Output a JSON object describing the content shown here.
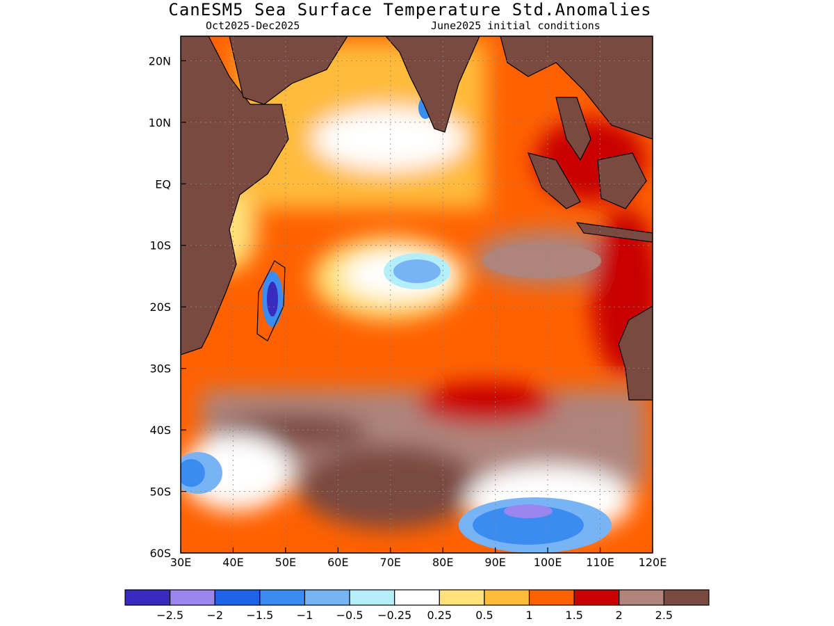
{
  "chart_data": {
    "type": "heatmap",
    "title": "CanESM5 Sea Surface Temperature Std.Anomalies",
    "subtitle_left": "Oct2025-Dec2025",
    "subtitle_right": "June2025 initial conditions",
    "x_ticks": [
      "30E",
      "40E",
      "50E",
      "60E",
      "70E",
      "80E",
      "90E",
      "100E",
      "110E",
      "120E"
    ],
    "x_values": [
      30,
      40,
      50,
      60,
      70,
      80,
      90,
      100,
      110,
      120
    ],
    "y_ticks": [
      "20N",
      "10N",
      "EQ",
      "10S",
      "20S",
      "30S",
      "40S",
      "50S",
      "60S"
    ],
    "y_values": [
      20,
      10,
      0,
      -10,
      -20,
      -30,
      -40,
      -50,
      -60
    ],
    "xlim": [
      30,
      120
    ],
    "ylim": [
      -60,
      24
    ],
    "grid": true,
    "colorbar": {
      "labels": [
        "-2.5",
        "-2",
        "-1.5",
        "-1",
        "-0.5",
        "-0.25",
        "0.25",
        "0.5",
        "1",
        "1.5",
        "2",
        "2.5"
      ],
      "colors": [
        "#3a2bbf",
        "#9b86f0",
        "#1f63e6",
        "#3a8cf0",
        "#78b4f5",
        "#b4eef8",
        "#ffffff",
        "#ffe27a",
        "#ffbb3a",
        "#ff6100",
        "#c80000",
        "#ae847b",
        "#7a4a40"
      ]
    },
    "land_color": "#7a4a40",
    "anomaly_features": [
      {
        "lon": 65,
        "lat": 8,
        "value": 0.1
      },
      {
        "lon": 73,
        "lat": -14,
        "value": -0.8
      },
      {
        "lon": 47,
        "lat": -18,
        "value": -1.8
      },
      {
        "lon": 100,
        "lat": -52,
        "value": -1.3
      },
      {
        "lon": 33,
        "lat": -47,
        "value": -0.8
      },
      {
        "lon": 90,
        "lat": -10,
        "value": 2.1
      },
      {
        "lon": 60,
        "lat": -45,
        "value": 2.4
      },
      {
        "lon": 70,
        "lat": -50,
        "value": 2.3
      },
      {
        "lon": 115,
        "lat": -38,
        "value": 2.2
      }
    ]
  }
}
